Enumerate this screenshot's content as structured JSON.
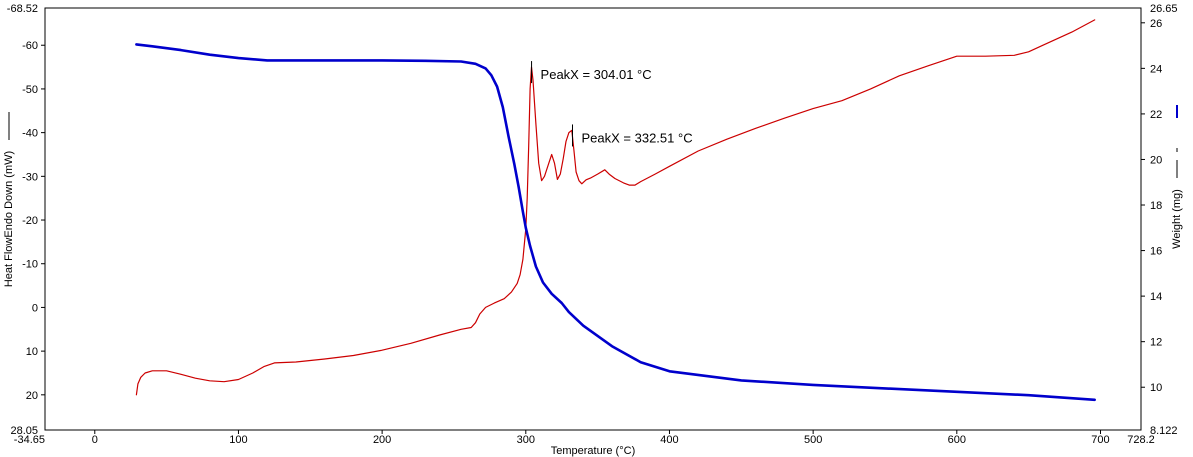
{
  "chart_data": {
    "type": "line",
    "title": "",
    "xlabel": "Temperature (°C)",
    "ylabel_left": "Heat FlowEndo Down (mW)",
    "ylabel_right": "Weight (mg)",
    "xlim": [
      -34.65,
      728.2
    ],
    "ylim_left": [
      28.05,
      -68.52
    ],
    "ylim_right": [
      8.122,
      26.65
    ],
    "x_ticks": [
      0,
      100,
      200,
      300,
      400,
      500,
      600,
      700
    ],
    "x_edge_labels": [
      "-34.65",
      "728.2"
    ],
    "y_left_ticks": [
      -60,
      -50,
      -40,
      -30,
      -20,
      -10,
      0,
      10,
      20
    ],
    "y_left_edge_labels": [
      "-68.52",
      "28.05"
    ],
    "y_right_ticks": [
      10,
      12,
      14,
      16,
      18,
      20,
      22,
      24,
      26
    ],
    "y_right_edge_labels": [
      "8.122",
      "26.65"
    ],
    "grid": false,
    "legend_position": "",
    "series": [
      {
        "color": "#cc0000",
        "axis": "left",
        "x": [
          29,
          30,
          32,
          35,
          40,
          50,
          60,
          70,
          80,
          90,
          100,
          110,
          118,
          125,
          140,
          160,
          180,
          200,
          220,
          240,
          255,
          262,
          265,
          268,
          272,
          278,
          285,
          290,
          294,
          296,
          298,
          300,
          301,
          302,
          303,
          304,
          305,
          307,
          309,
          311,
          313,
          316,
          318,
          320,
          322,
          324,
          326,
          328,
          330,
          332,
          333.5,
          335,
          337,
          339,
          342,
          345,
          350,
          355,
          358,
          362,
          368,
          372,
          376,
          380,
          390,
          400,
          420,
          440,
          460,
          480,
          500,
          520,
          540,
          560,
          580,
          600,
          620,
          640,
          650,
          660,
          680,
          696
        ],
        "y": [
          20,
          17.5,
          16,
          15,
          14.5,
          14.5,
          15.3,
          16.2,
          16.8,
          17,
          16.5,
          15,
          13.5,
          12.7,
          12.5,
          11.8,
          11,
          9.8,
          8.2,
          6.3,
          5,
          4.6,
          3.5,
          1.5,
          0,
          -1,
          -2,
          -3.5,
          -5.5,
          -7.5,
          -11,
          -18,
          -25,
          -37,
          -50,
          -55,
          -52,
          -42,
          -33,
          -29,
          -30,
          -33,
          -35,
          -33,
          -29.3,
          -30.5,
          -34,
          -38,
          -40,
          -40.5,
          -36,
          -31,
          -29,
          -28.3,
          -29.2,
          -29.6,
          -30.5,
          -31.5,
          -30.5,
          -29.5,
          -28.5,
          -28,
          -28,
          -28.8,
          -30.5,
          -32.3,
          -35.8,
          -38.5,
          -41,
          -43.3,
          -45.5,
          -47.3,
          -50,
          -53,
          -55.3,
          -57.5,
          -57.5,
          -57.7,
          -58.5,
          -60,
          -63,
          -65.8
        ]
      },
      {
        "color": "#0000cc",
        "axis": "right",
        "x": [
          29,
          40,
          60,
          80,
          100,
          120,
          150,
          200,
          230,
          255,
          265,
          272,
          276,
          280,
          284,
          288,
          292,
          295,
          298,
          300,
          303,
          307,
          312,
          318,
          325,
          330,
          340,
          360,
          380,
          400,
          450,
          500,
          550,
          600,
          650,
          696
        ],
        "y": [
          25.05,
          24.97,
          24.8,
          24.6,
          24.45,
          24.35,
          24.35,
          24.35,
          24.33,
          24.3,
          24.2,
          24.0,
          23.7,
          23.2,
          22.3,
          21.0,
          19.8,
          18.8,
          17.7,
          17.0,
          16.2,
          15.3,
          14.6,
          14.1,
          13.7,
          13.3,
          12.7,
          11.8,
          11.1,
          10.7,
          10.3,
          10.1,
          9.95,
          9.8,
          9.65,
          9.45
        ]
      }
    ],
    "annotations": [
      {
        "text": "PeakX = 304.01 °C",
        "x": 304.01
      },
      {
        "text": "PeakX = 332.51 °C",
        "x": 332.51
      }
    ]
  }
}
